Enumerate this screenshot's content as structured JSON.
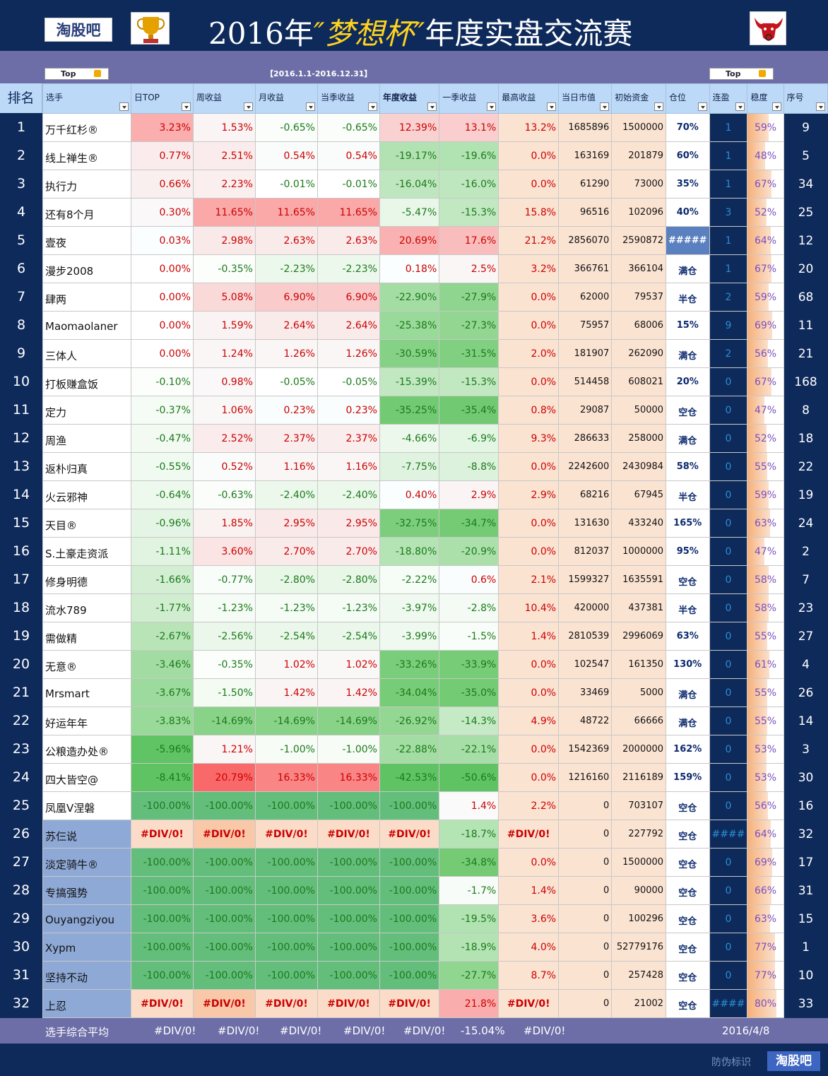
{
  "header": {
    "logo_text": "淘股吧",
    "title_pre": "2016年",
    "title_quote_open": "″",
    "title_hl": "梦想杯",
    "title_quote_close": "″",
    "title_post": "年度实盘交流赛"
  },
  "subbar": {
    "top_left": "Top",
    "top_right": "Top",
    "date_range": "【2016.1.1-2016.12.31】"
  },
  "columns": {
    "rank": "排名",
    "player": "选手",
    "day": "日TOP",
    "week": "周收益",
    "month": "月收益",
    "quarter": "当季收益",
    "year": "年度收益",
    "first_q": "一季收益",
    "max": "最高收益",
    "mv": "当日市值",
    "ic": "初始资金",
    "pos": "仓位",
    "win": "连盈",
    "stab": "稳度",
    "seq": "序号"
  },
  "rows": [
    {
      "rank": "1",
      "name": "万千红杉®",
      "day": "3.23%",
      "week": "1.53%",
      "month": "-0.65%",
      "quarter": "-0.65%",
      "year": "12.39%",
      "fq": "13.1%",
      "max": "13.2%",
      "mv": "1685896",
      "ic": "1500000",
      "pos": "70%",
      "win": "1",
      "stab": "59%",
      "seq": "9"
    },
    {
      "rank": "2",
      "name": "线上禅生®",
      "day": "0.77%",
      "week": "2.51%",
      "month": "0.54%",
      "quarter": "0.54%",
      "year": "-19.17%",
      "fq": "-19.6%",
      "max": "0.0%",
      "mv": "163169",
      "ic": "201879",
      "pos": "60%",
      "win": "1",
      "stab": "48%",
      "seq": "5"
    },
    {
      "rank": "3",
      "name": "执行力",
      "day": "0.66%",
      "week": "2.23%",
      "month": "-0.01%",
      "quarter": "-0.01%",
      "year": "-16.04%",
      "fq": "-16.0%",
      "max": "0.0%",
      "mv": "61290",
      "ic": "73000",
      "pos": "35%",
      "win": "1",
      "stab": "67%",
      "seq": "34"
    },
    {
      "rank": "4",
      "name": "还有8个月",
      "day": "0.30%",
      "week": "11.65%",
      "month": "11.65%",
      "quarter": "11.65%",
      "year": "-5.47%",
      "fq": "-15.3%",
      "max": "15.8%",
      "mv": "96516",
      "ic": "102096",
      "pos": "40%",
      "win": "3",
      "stab": "52%",
      "seq": "25"
    },
    {
      "rank": "5",
      "name": "壹夜",
      "day": "0.03%",
      "week": "2.98%",
      "month": "2.63%",
      "quarter": "2.63%",
      "year": "20.69%",
      "fq": "17.6%",
      "max": "21.2%",
      "mv": "2856070",
      "ic": "2590872",
      "pos": "#####",
      "win": "1",
      "stab": "64%",
      "seq": "12"
    },
    {
      "rank": "6",
      "name": "漫步2008",
      "day": "0.00%",
      "week": "-0.35%",
      "month": "-2.23%",
      "quarter": "-2.23%",
      "year": "0.18%",
      "fq": "2.5%",
      "max": "3.2%",
      "mv": "366761",
      "ic": "366104",
      "pos": "满仓",
      "win": "1",
      "stab": "67%",
      "seq": "20"
    },
    {
      "rank": "7",
      "name": "肆两",
      "day": "0.00%",
      "week": "5.08%",
      "month": "6.90%",
      "quarter": "6.90%",
      "year": "-22.90%",
      "fq": "-27.9%",
      "max": "0.0%",
      "mv": "62000",
      "ic": "79537",
      "pos": "半仓",
      "win": "2",
      "stab": "59%",
      "seq": "68"
    },
    {
      "rank": "8",
      "name": "Maomaolaner",
      "day": "0.00%",
      "week": "1.59%",
      "month": "2.64%",
      "quarter": "2.64%",
      "year": "-25.38%",
      "fq": "-27.3%",
      "max": "0.0%",
      "mv": "75957",
      "ic": "68006",
      "pos": "15%",
      "win": "9",
      "stab": "69%",
      "seq": "11"
    },
    {
      "rank": "9",
      "name": "三体人",
      "day": "0.00%",
      "week": "1.24%",
      "month": "1.26%",
      "quarter": "1.26%",
      "year": "-30.59%",
      "fq": "-31.5%",
      "max": "2.0%",
      "mv": "181907",
      "ic": "262090",
      "pos": "满仓",
      "win": "2",
      "stab": "56%",
      "seq": "21"
    },
    {
      "rank": "10",
      "name": "打板赚盒饭",
      "day": "-0.10%",
      "week": "0.98%",
      "month": "-0.05%",
      "quarter": "-0.05%",
      "year": "-15.39%",
      "fq": "-15.3%",
      "max": "0.0%",
      "mv": "514458",
      "ic": "608021",
      "pos": "20%",
      "win": "0",
      "stab": "67%",
      "seq": "168"
    },
    {
      "rank": "11",
      "name": "定力",
      "day": "-0.37%",
      "week": "1.06%",
      "month": "0.23%",
      "quarter": "0.23%",
      "year": "-35.25%",
      "fq": "-35.4%",
      "max": "0.8%",
      "mv": "29087",
      "ic": "50000",
      "pos": "空仓",
      "win": "0",
      "stab": "47%",
      "seq": "8"
    },
    {
      "rank": "12",
      "name": "周渔",
      "day": "-0.47%",
      "week": "2.52%",
      "month": "2.37%",
      "quarter": "2.37%",
      "year": "-4.66%",
      "fq": "-6.9%",
      "max": "9.3%",
      "mv": "286633",
      "ic": "258000",
      "pos": "满仓",
      "win": "0",
      "stab": "52%",
      "seq": "18"
    },
    {
      "rank": "13",
      "name": "返朴归真",
      "day": "-0.55%",
      "week": "0.52%",
      "month": "1.16%",
      "quarter": "1.16%",
      "year": "-7.75%",
      "fq": "-8.8%",
      "max": "0.0%",
      "mv": "2242600",
      "ic": "2430984",
      "pos": "58%",
      "win": "0",
      "stab": "55%",
      "seq": "22"
    },
    {
      "rank": "14",
      "name": "火云邪神",
      "day": "-0.64%",
      "week": "-0.63%",
      "month": "-2.40%",
      "quarter": "-2.40%",
      "year": "0.40%",
      "fq": "2.9%",
      "max": "2.9%",
      "mv": "68216",
      "ic": "67945",
      "pos": "半仓",
      "win": "0",
      "stab": "59%",
      "seq": "19"
    },
    {
      "rank": "15",
      "name": "天目®",
      "day": "-0.96%",
      "week": "1.85%",
      "month": "2.95%",
      "quarter": "2.95%",
      "year": "-32.75%",
      "fq": "-34.7%",
      "max": "0.0%",
      "mv": "131630",
      "ic": "433240",
      "pos": "165%",
      "win": "0",
      "stab": "63%",
      "seq": "24"
    },
    {
      "rank": "16",
      "name": "S.土豪走资派",
      "day": "-1.11%",
      "week": "3.60%",
      "month": "2.70%",
      "quarter": "2.70%",
      "year": "-18.80%",
      "fq": "-20.9%",
      "max": "0.0%",
      "mv": "812037",
      "ic": "1000000",
      "pos": "95%",
      "win": "0",
      "stab": "47%",
      "seq": "2"
    },
    {
      "rank": "17",
      "name": "修身明德",
      "day": "-1.66%",
      "week": "-0.77%",
      "month": "-2.80%",
      "quarter": "-2.80%",
      "year": "-2.22%",
      "fq": "0.6%",
      "max": "2.1%",
      "mv": "1599327",
      "ic": "1635591",
      "pos": "空仓",
      "win": "0",
      "stab": "58%",
      "seq": "7"
    },
    {
      "rank": "18",
      "name": "流水789",
      "day": "-1.77%",
      "week": "-1.23%",
      "month": "-1.23%",
      "quarter": "-1.23%",
      "year": "-3.97%",
      "fq": "-2.8%",
      "max": "10.4%",
      "mv": "420000",
      "ic": "437381",
      "pos": "半仓",
      "win": "0",
      "stab": "58%",
      "seq": "23"
    },
    {
      "rank": "19",
      "name": "需做精",
      "day": "-2.67%",
      "week": "-2.56%",
      "month": "-2.54%",
      "quarter": "-2.54%",
      "year": "-3.99%",
      "fq": "-1.5%",
      "max": "1.4%",
      "mv": "2810539",
      "ic": "2996069",
      "pos": "63%",
      "win": "0",
      "stab": "55%",
      "seq": "27"
    },
    {
      "rank": "20",
      "name": "无意®",
      "day": "-3.46%",
      "week": "-0.35%",
      "month": "1.02%",
      "quarter": "1.02%",
      "year": "-33.26%",
      "fq": "-33.9%",
      "max": "0.0%",
      "mv": "102547",
      "ic": "161350",
      "pos": "130%",
      "win": "0",
      "stab": "61%",
      "seq": "4"
    },
    {
      "rank": "21",
      "name": "Mrsmart",
      "day": "-3.67%",
      "week": "-1.50%",
      "month": "1.42%",
      "quarter": "1.42%",
      "year": "-34.04%",
      "fq": "-35.0%",
      "max": "0.0%",
      "mv": "33469",
      "ic": "5000",
      "pos": "满仓",
      "win": "0",
      "stab": "55%",
      "seq": "26"
    },
    {
      "rank": "22",
      "name": "好运年年",
      "day": "-3.83%",
      "week": "-14.69%",
      "month": "-14.69%",
      "quarter": "-14.69%",
      "year": "-26.92%",
      "fq": "-14.3%",
      "max": "4.9%",
      "mv": "48722",
      "ic": "66666",
      "pos": "满仓",
      "win": "0",
      "stab": "55%",
      "seq": "14"
    },
    {
      "rank": "23",
      "name": "公粮造办处®",
      "day": "-5.96%",
      "week": "1.21%",
      "month": "-1.00%",
      "quarter": "-1.00%",
      "year": "-22.88%",
      "fq": "-22.1%",
      "max": "0.0%",
      "mv": "1542369",
      "ic": "2000000",
      "pos": "162%",
      "win": "0",
      "stab": "53%",
      "seq": "3"
    },
    {
      "rank": "24",
      "name": "四大皆空@",
      "day": "-8.41%",
      "week": "20.79%",
      "month": "16.33%",
      "quarter": "16.33%",
      "year": "-42.53%",
      "fq": "-50.6%",
      "max": "0.0%",
      "mv": "1216160",
      "ic": "2116189",
      "pos": "159%",
      "win": "0",
      "stab": "53%",
      "seq": "30"
    },
    {
      "rank": "25",
      "name": "凤凰V涅磐",
      "day": "-100.00%",
      "week": "-100.00%",
      "month": "-100.00%",
      "quarter": "-100.00%",
      "year": "-100.00%",
      "fq": "1.4%",
      "max": "2.2%",
      "mv": "0",
      "ic": "703107",
      "pos": "空仓",
      "win": "0",
      "stab": "56%",
      "seq": "16"
    },
    {
      "rank": "26",
      "name": "苏仨说",
      "day": "#DIV/0!",
      "week": "#DIV/0!",
      "month": "#DIV/0!",
      "quarter": "#DIV/0!",
      "year": "#DIV/0!",
      "fq": "-18.7%",
      "max": "#DIV/0!",
      "mv": "0",
      "ic": "227792",
      "pos": "空仓",
      "win": "####",
      "stab": "64%",
      "seq": "32"
    },
    {
      "rank": "27",
      "name": "淡定骑牛®",
      "day": "-100.00%",
      "week": "-100.00%",
      "month": "-100.00%",
      "quarter": "-100.00%",
      "year": "-100.00%",
      "fq": "-34.8%",
      "max": "0.0%",
      "mv": "0",
      "ic": "1500000",
      "pos": "空仓",
      "win": "0",
      "stab": "69%",
      "seq": "17"
    },
    {
      "rank": "28",
      "name": "专搞强势",
      "day": "-100.00%",
      "week": "-100.00%",
      "month": "-100.00%",
      "quarter": "-100.00%",
      "year": "-100.00%",
      "fq": "-1.7%",
      "max": "1.4%",
      "mv": "0",
      "ic": "90000",
      "pos": "空仓",
      "win": "0",
      "stab": "66%",
      "seq": "31"
    },
    {
      "rank": "29",
      "name": "Ouyangziyou",
      "day": "-100.00%",
      "week": "-100.00%",
      "month": "-100.00%",
      "quarter": "-100.00%",
      "year": "-100.00%",
      "fq": "-19.5%",
      "max": "3.6%",
      "mv": "0",
      "ic": "100296",
      "pos": "空仓",
      "win": "0",
      "stab": "63%",
      "seq": "15"
    },
    {
      "rank": "30",
      "name": "Xypm",
      "day": "-100.00%",
      "week": "-100.00%",
      "month": "-100.00%",
      "quarter": "-100.00%",
      "year": "-100.00%",
      "fq": "-18.9%",
      "max": "4.0%",
      "mv": "0",
      "ic": "52779176",
      "pos": "空仓",
      "win": "0",
      "stab": "77%",
      "seq": "1"
    },
    {
      "rank": "31",
      "name": "坚持不动",
      "day": "-100.00%",
      "week": "-100.00%",
      "month": "-100.00%",
      "quarter": "-100.00%",
      "year": "-100.00%",
      "fq": "-27.7%",
      "max": "8.7%",
      "mv": "0",
      "ic": "257428",
      "pos": "空仓",
      "win": "0",
      "stab": "77%",
      "seq": "10"
    },
    {
      "rank": "32",
      "name": "上忍",
      "day": "#DIV/0!",
      "week": "#DIV/0!",
      "month": "#DIV/0!",
      "quarter": "#DIV/0!",
      "year": "#DIV/0!",
      "fq": "21.8%",
      "max": "#DIV/0!",
      "mv": "0",
      "ic": "21002",
      "pos": "空仓",
      "win": "####",
      "stab": "80%",
      "seq": "33"
    }
  ],
  "footer": {
    "label": "选手综合平均",
    "day": "#DIV/0!",
    "week": "#DIV/0!",
    "month": "#DIV/0!",
    "quarter": "#DIV/0!",
    "year": "#DIV/0!",
    "fq": "-15.04%",
    "max": "#DIV/0!",
    "date": "2016/4/8"
  },
  "bottom": {
    "anti_fake": "防伪标识",
    "brand": "淘股吧"
  },
  "colors": {
    "navy": "#0e2a5b",
    "header_blue": "#bcd9f7",
    "purple_bar": "#6d6ea8"
  }
}
